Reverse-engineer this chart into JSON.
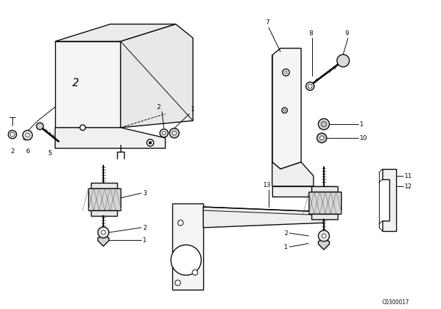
{
  "bg_color": "#ffffff",
  "line_color": "#000000",
  "diagram_code": "C0300017",
  "fig_width": 6.4,
  "fig_height": 4.48,
  "dpi": 100
}
